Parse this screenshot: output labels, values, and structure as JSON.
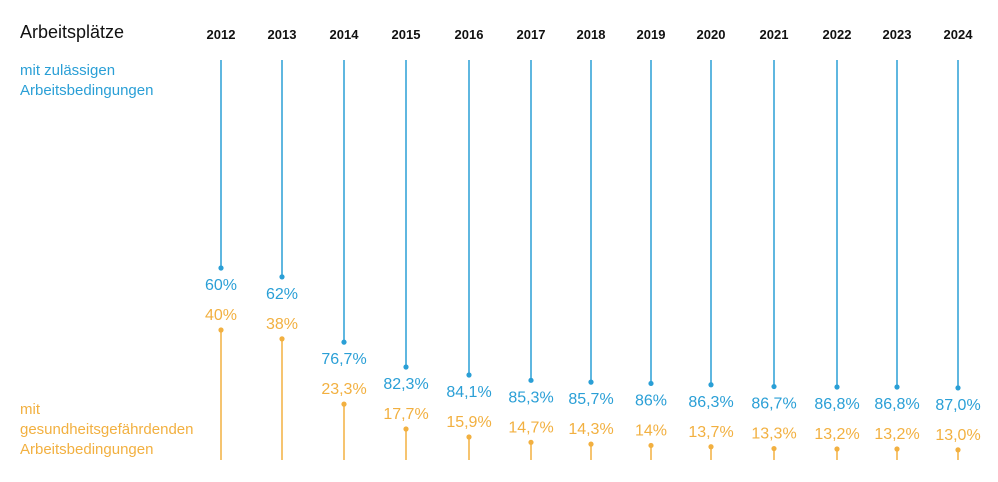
{
  "chart_data": {
    "type": "lollipop",
    "title": "Arbeitsplätze",
    "categories": [
      "2012",
      "2013",
      "2014",
      "2015",
      "2016",
      "2017",
      "2018",
      "2019",
      "2020",
      "2021",
      "2022",
      "2023",
      "2024"
    ],
    "series": [
      {
        "name": "mit zulässigen Arbeitsbedingungen",
        "color": "#2a9fd6",
        "values": [
          60,
          62,
          76.7,
          82.3,
          84.1,
          85.3,
          85.7,
          86,
          86.3,
          86.7,
          86.8,
          86.8,
          87.0
        ],
        "labels": [
          "60%",
          "62%",
          "76,7%",
          "82,3%",
          "84,1%",
          "85,3%",
          "85,7%",
          "86%",
          "86,3%",
          "86,7%",
          "86,8%",
          "86,8%",
          "87,0%"
        ]
      },
      {
        "name": "mit gesundheitsgefährdenden Arbeitsbedingungen",
        "color": "#f2b040",
        "values": [
          40,
          38,
          23.3,
          17.7,
          15.9,
          14.7,
          14.3,
          14,
          13.7,
          13.3,
          13.2,
          13.2,
          13.0
        ],
        "labels": [
          "40%",
          "38%",
          "23,3%",
          "17,7%",
          "15,9%",
          "14,7%",
          "14,3%",
          "14%",
          "13,7%",
          "13,3%",
          "13,2%",
          "13,2%",
          "13,0%"
        ]
      }
    ],
    "ylim": [
      0,
      100
    ],
    "legend_top": [
      "mit zulässigen",
      "Arbeitsbedingungen"
    ],
    "legend_bottom": [
      "mit",
      "gesundheitsgefährdenden",
      "Arbeitsbedingungen"
    ]
  }
}
